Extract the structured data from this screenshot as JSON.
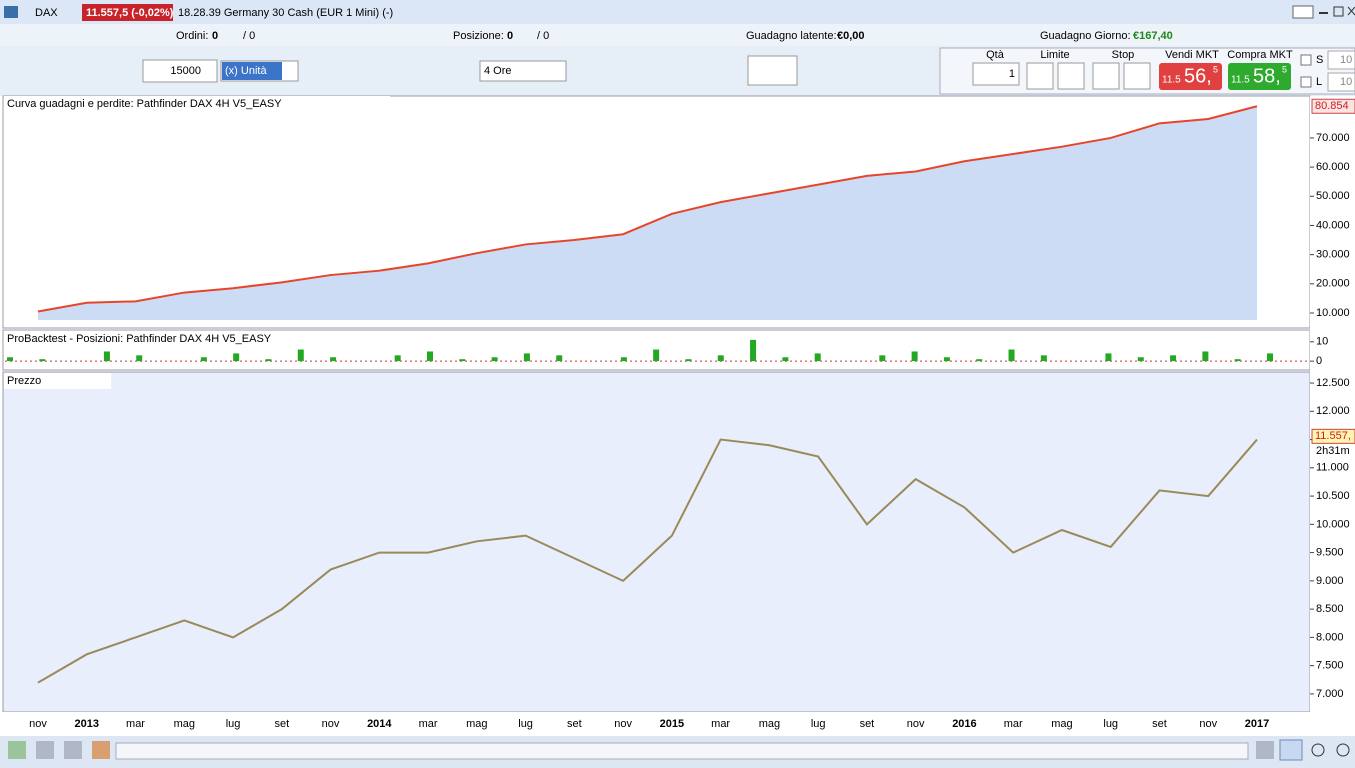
{
  "window": {
    "symbol": "DAX",
    "price_tag": "11.557,5 (-0,02%)",
    "title": "18.28.39 Germany 30 Cash (EUR 1 Mini) (-)"
  },
  "info_bar": {
    "orders_label": "Ordini:",
    "orders_count": "0",
    "orders_other": "/ 0",
    "position_label": "Posizione:",
    "position_count": "0",
    "position_other": "/ 0",
    "latent_label": "Guadagno latente:",
    "latent_value": "€0,00",
    "day_label": "Guadagno Giorno:",
    "day_value": "€167,40"
  },
  "controls": {
    "quantity": "15000",
    "unit": "(x) Unità",
    "timeframe": "4 Ore",
    "qty_label": "Qtà",
    "qty_value": "1",
    "limit_label": "Limite",
    "stop_label": "Stop",
    "sell_label": "Vendi MKT",
    "buy_label": "Compra MKT",
    "sell_small": "11.5",
    "sell_big": "56,",
    "sell_sup": "5",
    "buy_small": "11.5",
    "buy_big": "58,",
    "buy_sup": "5",
    "s_label": "S",
    "l_label": "L",
    "s_value": "10",
    "l_value": "10"
  },
  "chart_data": [
    {
      "type": "area",
      "title": "Curva guadagni e perdite: Pathfinder DAX 4H V5_EASY",
      "color": "#e8442a",
      "fill": "#cddcf5",
      "categories": [
        "nov",
        "2013",
        "mar",
        "mag",
        "lug",
        "set",
        "nov",
        "2014",
        "mar",
        "mag",
        "lug",
        "set",
        "nov",
        "2015",
        "mar",
        "mag",
        "lug",
        "set",
        "nov",
        "2016",
        "mar",
        "mag",
        "lug",
        "set",
        "nov",
        "2017"
      ],
      "values": [
        10500,
        13500,
        14000,
        17000,
        18500,
        20500,
        23000,
        24500,
        27000,
        30500,
        33500,
        35000,
        37000,
        44000,
        48000,
        51000,
        54000,
        57000,
        58500,
        62000,
        64500,
        67000,
        70000,
        75000,
        76500,
        80854
      ],
      "ylim": [
        7600,
        83000
      ],
      "yticks": [
        {
          "value": 10000,
          "label": "10.000"
        },
        {
          "value": 20000,
          "label": "20.000"
        },
        {
          "value": 30000,
          "label": "30.000"
        },
        {
          "value": 40000,
          "label": "40.000"
        },
        {
          "value": 50000,
          "label": "50.000"
        },
        {
          "value": 60000,
          "label": "60.000"
        },
        {
          "value": 70000,
          "label": "70.000"
        }
      ],
      "current": {
        "value": 80854,
        "label": "80.854"
      }
    },
    {
      "type": "bar",
      "title": "ProBacktest - Posizioni: Pathfinder DAX 4H V5_EASY",
      "color": "#22a822",
      "values": [
        2,
        1,
        0,
        5,
        3,
        0,
        2,
        4,
        1,
        6,
        2,
        0,
        3,
        5,
        1,
        2,
        4,
        3,
        0,
        2,
        6,
        1,
        3,
        11,
        2,
        4,
        0,
        3,
        5,
        2,
        1,
        6,
        3,
        0,
        4,
        2,
        3,
        5,
        1,
        4
      ],
      "ylim": [
        -2,
        13
      ],
      "yticks": [
        0,
        10
      ]
    },
    {
      "type": "line",
      "title": "Prezzo",
      "color": "#9a8a5a",
      "categories": [
        "nov",
        "2013",
        "mar",
        "mag",
        "lug",
        "set",
        "nov",
        "2014",
        "mar",
        "mag",
        "lug",
        "set",
        "nov",
        "2015",
        "mar",
        "mag",
        "lug",
        "set",
        "nov",
        "2016",
        "mar",
        "mag",
        "lug",
        "set",
        "nov",
        "2017"
      ],
      "values": [
        7200,
        7700,
        8000,
        8300,
        8000,
        8500,
        9200,
        9500,
        9500,
        9700,
        9800,
        9400,
        9000,
        9800,
        11500,
        11400,
        11200,
        10000,
        10800,
        10300,
        9500,
        9900,
        9600,
        10600,
        10500,
        11500
      ],
      "ylim": [
        6680,
        12660
      ],
      "yticks": [
        {
          "value": 7000,
          "label": "7.000"
        },
        {
          "value": 7500,
          "label": "7.500"
        },
        {
          "value": 8000,
          "label": "8.000"
        },
        {
          "value": 8500,
          "label": "8.500"
        },
        {
          "value": 9000,
          "label": "9.000"
        },
        {
          "value": 9500,
          "label": "9.500"
        },
        {
          "value": 10000,
          "label": "10.000"
        },
        {
          "value": 10500,
          "label": "10.500"
        },
        {
          "value": 11000,
          "label": "11.000"
        },
        {
          "value": 11500,
          "label": "11.500"
        },
        {
          "value": 12000,
          "label": "12.000"
        },
        {
          "value": 12500,
          "label": "12.500"
        }
      ],
      "current": {
        "value": 11557,
        "label": "11.557,"
      },
      "countdown": "2h31m"
    }
  ]
}
